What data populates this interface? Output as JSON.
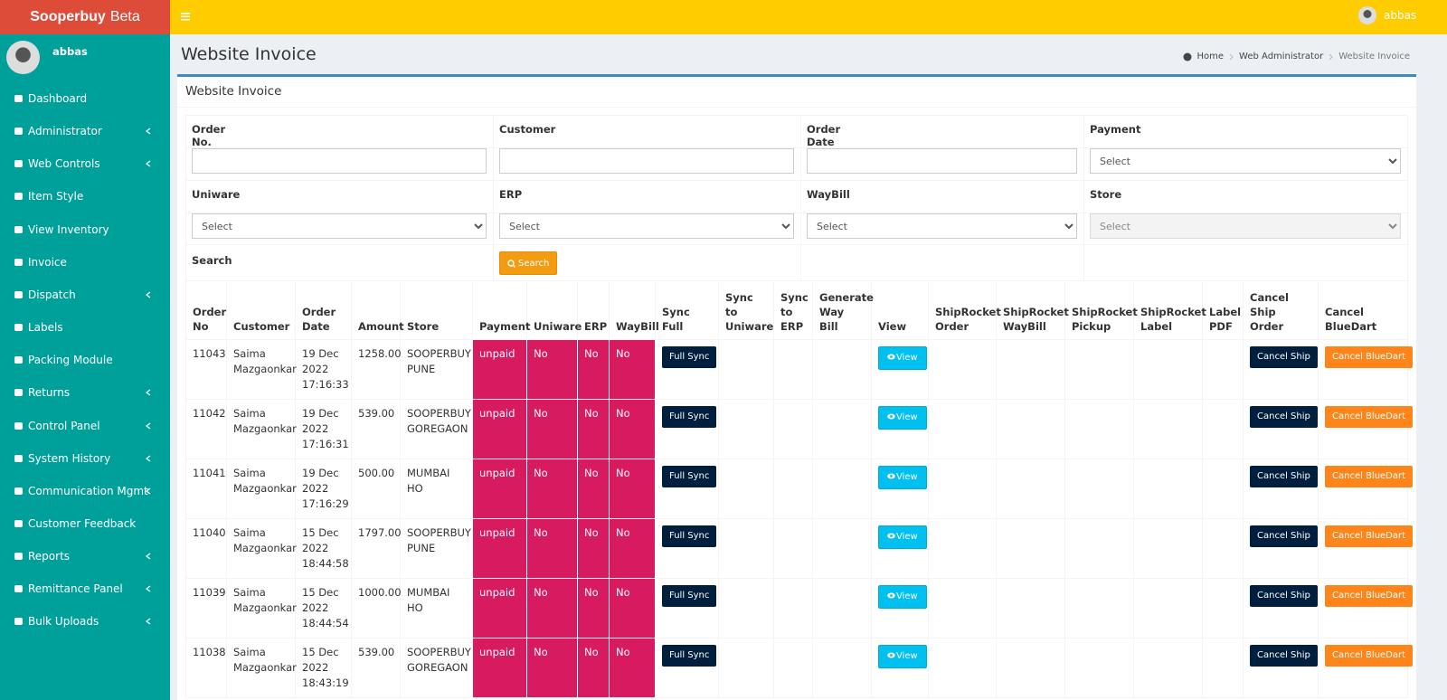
{
  "header": {
    "brand": "Sooperbuy",
    "brand_suffix": "Beta",
    "user": "abbas"
  },
  "sidebar": {
    "user": "abbas",
    "menu": [
      {
        "label": "Dashboard",
        "expandable": false
      },
      {
        "label": "Administrator",
        "expandable": true
      },
      {
        "label": "Web Controls",
        "expandable": true
      },
      {
        "label": "Item Style",
        "expandable": false
      },
      {
        "label": "View Inventory",
        "expandable": false
      },
      {
        "label": "Invoice",
        "expandable": false
      },
      {
        "label": "Dispatch",
        "expandable": true
      },
      {
        "label": "Labels",
        "expandable": false
      },
      {
        "label": "Packing Module",
        "expandable": false
      },
      {
        "label": "Returns",
        "expandable": true
      },
      {
        "label": "Control Panel",
        "expandable": true
      },
      {
        "label": "System History",
        "expandable": true
      },
      {
        "label": "Communication Mgmt",
        "expandable": true
      },
      {
        "label": "Customer Feedback",
        "expandable": false
      },
      {
        "label": "Reports",
        "expandable": true
      },
      {
        "label": "Remittance Panel",
        "expandable": true
      },
      {
        "label": "Bulk Uploads",
        "expandable": true
      }
    ]
  },
  "content_header": {
    "title": "Website Invoice",
    "breadcrumb": [
      "Home",
      "Web Administrator",
      "Website Invoice"
    ]
  },
  "box": {
    "title": "Website Invoice"
  },
  "filters": {
    "fields": [
      {
        "label": "Order No."
      },
      {
        "label": "Customer"
      },
      {
        "label": "Order Date"
      },
      {
        "label": "Payment",
        "placeholder": "Select"
      },
      {
        "label": "Uniware",
        "placeholder": "Select"
      },
      {
        "label": "ERP",
        "placeholder": "Select"
      },
      {
        "label": "WayBill",
        "placeholder": "Select"
      },
      {
        "label": "Store",
        "placeholder": "Select",
        "disabled": true
      }
    ],
    "search_label": "Search",
    "search_button": "Search"
  },
  "table": {
    "columns": [
      "Order No",
      "Customer",
      "Order Date",
      "Amount",
      "Store",
      "Payment",
      "Uniware",
      "ERP",
      "WayBill",
      "Sync Full",
      "Sync to Uniware",
      "Sync to ERP",
      "Generate Way Bill",
      "View",
      "ShipRocket Order",
      "ShipRocket WayBill",
      "ShipRocket Pickup",
      "ShipRocket Label",
      "Label PDF",
      "Cancel Ship Order",
      "Cancel BlueDart"
    ],
    "buttons": {
      "full_sync": "Full Sync",
      "view": "View",
      "cancel_ship": "Cancel Ship",
      "cancel_bluedart": "Cancel BlueDart"
    },
    "rows": [
      {
        "order_no": 11043,
        "customer": "Saima Mazgaonkar",
        "order_date": "19 Dec 2022 17:16:33",
        "amount": "1258.00",
        "store": "SOOPERBUY PUNE",
        "payment": "unpaid",
        "uniware": "No",
        "erp": "No",
        "waybill": "No"
      },
      {
        "order_no": 11042,
        "customer": "Saima Mazgaonkar",
        "order_date": "19 Dec 2022 17:16:31",
        "amount": "539.00",
        "store": "SOOPERBUY GOREGAON",
        "payment": "unpaid",
        "uniware": "No",
        "erp": "No",
        "waybill": "No"
      },
      {
        "order_no": 11041,
        "customer": "Saima Mazgaonkar",
        "order_date": "19 Dec 2022 17:16:29",
        "amount": "500.00",
        "store": "MUMBAI HO",
        "payment": "unpaid",
        "uniware": "No",
        "erp": "No",
        "waybill": "No"
      },
      {
        "order_no": 11040,
        "customer": "Saima Mazgaonkar",
        "order_date": "15 Dec 2022 18:44:58",
        "amount": "1797.00",
        "store": "SOOPERBUY PUNE",
        "payment": "unpaid",
        "uniware": "No",
        "erp": "No",
        "waybill": "No"
      },
      {
        "order_no": 11039,
        "customer": "Saima Mazgaonkar",
        "order_date": "15 Dec 2022 18:44:54",
        "amount": "1000.00",
        "store": "MUMBAI HO",
        "payment": "unpaid",
        "uniware": "No",
        "erp": "No",
        "waybill": "No"
      },
      {
        "order_no": 11038,
        "customer": "Saima Mazgaonkar",
        "order_date": "15 Dec 2022 18:43:19",
        "amount": "539.00",
        "store": "SOOPERBUY GOREGAON",
        "payment": "unpaid",
        "uniware": "No",
        "erp": "No",
        "waybill": "No"
      }
    ]
  }
}
